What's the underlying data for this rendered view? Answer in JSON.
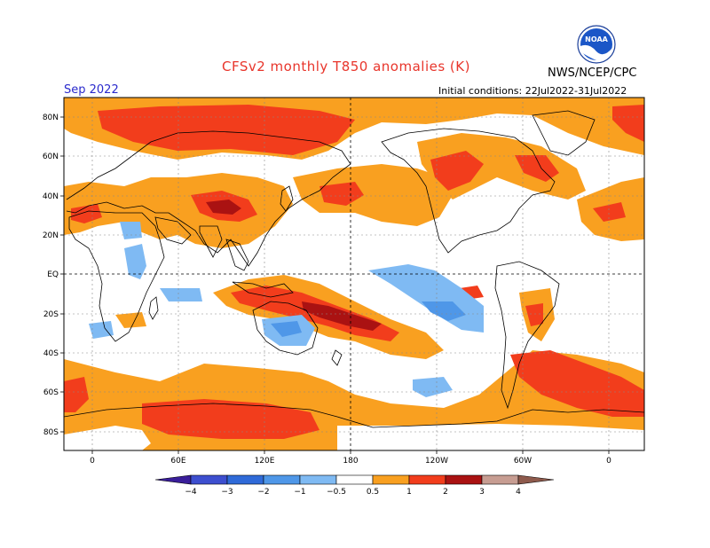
{
  "title": "CFSv2 monthly T850 anomalies (K)",
  "organization": "NWS/NCEP/CPC",
  "logo_text": "NOAA",
  "month": "Sep 2022",
  "initial_conditions": "Initial conditions: 22Jul2022-31Jul2022",
  "lat_labels": [
    "80N",
    "60N",
    "40N",
    "20N",
    "EQ",
    "20S",
    "40S",
    "60S",
    "80S"
  ],
  "lon_labels": [
    "0",
    "60E",
    "120E",
    "180",
    "120W",
    "60W",
    "0"
  ],
  "colorbar": {
    "labels": [
      "−4",
      "−3",
      "−2",
      "−1",
      "−0.5",
      "0.5",
      "1",
      "2",
      "3",
      "4"
    ],
    "colors": [
      "#3a1e9a",
      "#3d4fcf",
      "#2f6ad8",
      "#4f97e8",
      "#7fbaf3",
      "#ffffff",
      "#f9a020",
      "#f23d1c",
      "#aa1212",
      "#c79d92",
      "#8e5a4c"
    ]
  },
  "colors": {
    "title": "#e8352b",
    "warm1": "#f9a020",
    "warm2": "#f23d1c",
    "warm3": "#aa1212",
    "cool1": "#7fbaf3",
    "cool2": "#4f97e8"
  }
}
